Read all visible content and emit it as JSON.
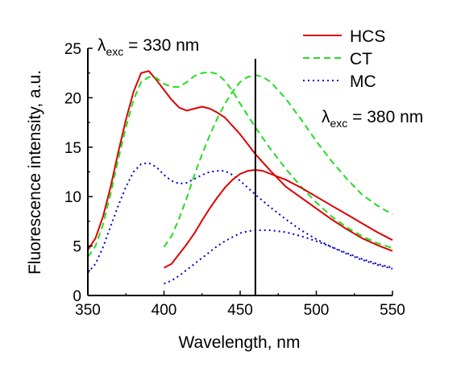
{
  "chart_data": {
    "type": "line",
    "xlabel": "Wavelength, nm",
    "ylabel": "Fluorescence intensity, a.u.",
    "xlim": [
      350,
      550
    ],
    "ylim": [
      0,
      25
    ],
    "xticks": [
      350,
      400,
      450,
      500,
      550
    ],
    "yticks": [
      0,
      5,
      10,
      15,
      20,
      25
    ],
    "legend_position": "top-right",
    "colors": {
      "HCS": "#dd0000",
      "CT": "#22dd22",
      "MC": "#0000cc",
      "marker": "#000000"
    },
    "vertical_line_x": 460,
    "annotations": [
      {
        "id": "exc330",
        "symbol": "λ",
        "sub": "exc",
        "text": " = 330 nm"
      },
      {
        "id": "exc380",
        "symbol": "λ",
        "sub": "exc",
        "text": " = 380 nm"
      }
    ],
    "series": [
      {
        "name": "HCS",
        "group": "λexc = 330 nm",
        "x": [
          350,
          355,
          360,
          365,
          370,
          375,
          380,
          385,
          390,
          395,
          400,
          405,
          410,
          415,
          420,
          425,
          430,
          435,
          440,
          450,
          460,
          470,
          480,
          490,
          500,
          510,
          520,
          530,
          540,
          550
        ],
        "y": [
          4.6,
          5.8,
          8.0,
          11.0,
          14.5,
          17.8,
          20.6,
          22.5,
          22.7,
          21.8,
          20.8,
          19.8,
          19.0,
          18.7,
          18.9,
          19.1,
          18.9,
          18.5,
          18.0,
          16.3,
          14.3,
          12.6,
          11.0,
          9.9,
          8.8,
          7.7,
          6.7,
          5.8,
          5.1,
          4.5
        ]
      },
      {
        "name": "CT",
        "group": "λexc = 330 nm",
        "x": [
          350,
          355,
          360,
          365,
          370,
          375,
          380,
          385,
          390,
          395,
          400,
          405,
          410,
          415,
          420,
          425,
          430,
          435,
          440,
          445,
          450,
          455,
          460,
          470,
          480,
          490,
          500,
          510,
          520,
          530,
          540,
          550
        ],
        "y": [
          3.9,
          5.0,
          7.2,
          10.3,
          13.8,
          17.0,
          19.8,
          21.6,
          22.1,
          22.0,
          21.4,
          21.1,
          21.1,
          21.6,
          22.2,
          22.5,
          22.6,
          22.4,
          21.7,
          20.7,
          19.4,
          18.2,
          17.0,
          14.8,
          12.8,
          11.0,
          9.4,
          8.0,
          6.9,
          6.0,
          5.3,
          4.8
        ]
      },
      {
        "name": "MC",
        "group": "λexc = 330 nm",
        "x": [
          350,
          355,
          360,
          365,
          370,
          375,
          380,
          385,
          390,
          395,
          400,
          405,
          410,
          415,
          420,
          425,
          430,
          435,
          440,
          445,
          450,
          460,
          470,
          480,
          490,
          500,
          510,
          520,
          530,
          540,
          550
        ],
        "y": [
          2.3,
          3.2,
          4.9,
          7.0,
          9.1,
          11.0,
          12.5,
          13.3,
          13.4,
          13.0,
          12.2,
          11.6,
          11.3,
          11.4,
          11.8,
          12.2,
          12.5,
          12.6,
          12.6,
          12.2,
          11.6,
          10.2,
          8.9,
          7.7,
          6.6,
          5.7,
          4.9,
          4.2,
          3.6,
          3.1,
          2.7
        ]
      },
      {
        "name": "HCS",
        "group": "λexc = 380 nm",
        "x": [
          400,
          405,
          410,
          415,
          420,
          425,
          430,
          435,
          440,
          445,
          450,
          455,
          460,
          465,
          470,
          480,
          490,
          500,
          510,
          520,
          530,
          540,
          550
        ],
        "y": [
          2.8,
          3.2,
          4.2,
          5.2,
          6.3,
          7.6,
          8.8,
          9.9,
          10.9,
          11.7,
          12.3,
          12.6,
          12.7,
          12.6,
          12.3,
          11.7,
          10.9,
          10.0,
          9.1,
          8.2,
          7.3,
          6.4,
          5.6
        ]
      },
      {
        "name": "CT",
        "group": "λexc = 380 nm",
        "x": [
          400,
          405,
          410,
          415,
          420,
          425,
          430,
          435,
          440,
          445,
          450,
          455,
          460,
          465,
          470,
          480,
          490,
          500,
          510,
          520,
          530,
          540,
          550
        ],
        "y": [
          4.9,
          6.0,
          7.8,
          9.9,
          12.2,
          14.3,
          16.2,
          17.9,
          19.4,
          20.6,
          21.6,
          22.1,
          22.3,
          22.1,
          21.6,
          19.9,
          17.8,
          15.6,
          13.6,
          11.8,
          10.2,
          9.1,
          8.2
        ]
      },
      {
        "name": "MC",
        "group": "λexc = 380 nm",
        "x": [
          400,
          405,
          410,
          415,
          420,
          425,
          430,
          435,
          440,
          445,
          450,
          455,
          460,
          465,
          470,
          480,
          490,
          500,
          510,
          520,
          530,
          540,
          550
        ],
        "y": [
          1.2,
          1.5,
          2.0,
          2.6,
          3.2,
          3.8,
          4.4,
          5.0,
          5.5,
          5.9,
          6.3,
          6.5,
          6.6,
          6.6,
          6.6,
          6.4,
          6.0,
          5.5,
          4.9,
          4.3,
          3.7,
          3.2,
          2.8
        ]
      }
    ]
  }
}
